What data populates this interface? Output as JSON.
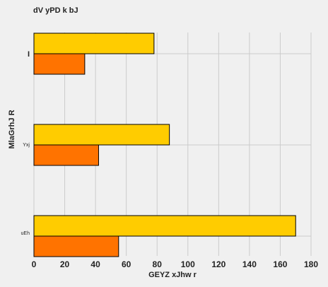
{
  "chart_data": {
    "type": "bar",
    "orientation": "horizontal",
    "title": "dV yPD k bJ",
    "xlabel": "GEYZ xJhw  r",
    "ylabel": "MlaGrhJ R",
    "categories": [
      "I",
      "Yxj",
      "uEh"
    ],
    "series": [
      {
        "values": [
          78,
          88,
          170
        ],
        "color": "#ffcc00"
      },
      {
        "values": [
          33,
          42,
          55
        ],
        "color": "#ff7300"
      }
    ],
    "xlim": [
      0,
      180
    ],
    "xticks": [
      "0",
      "20",
      "40",
      "60",
      "80",
      "100",
      "120",
      "140",
      "160",
      "180"
    ],
    "grid": true,
    "legend": "none",
    "background": "#f0f0f0",
    "bar_edge_color": "#000000"
  }
}
